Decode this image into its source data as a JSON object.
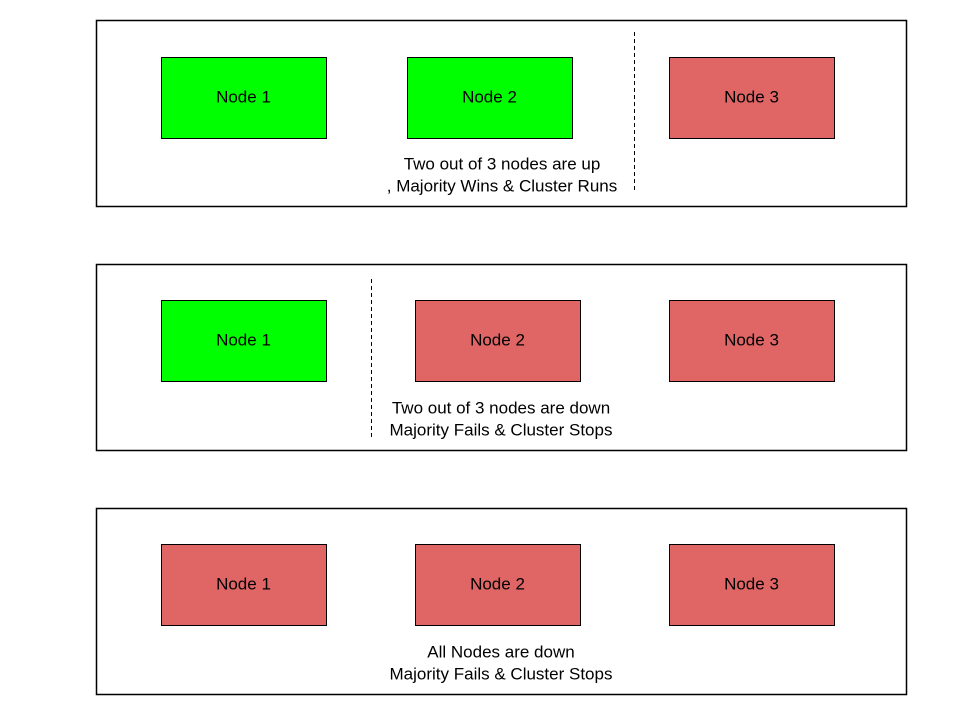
{
  "panels": [
    {
      "nodes": [
        {
          "label": "Node 1",
          "color": "#00ff00"
        },
        {
          "label": "Node 2",
          "color": "#00ff00"
        },
        {
          "label": "Node 3",
          "color": "#e06666"
        }
      ],
      "caption": [
        "Two out of 3 nodes are up",
        ", Majority Wins & Cluster Runs"
      ]
    },
    {
      "nodes": [
        {
          "label": "Node 1",
          "color": "#00ff00"
        },
        {
          "label": "Node 2",
          "color": "#e06666"
        },
        {
          "label": "Node 3",
          "color": "#e06666"
        }
      ],
      "caption": [
        "Two out of 3 nodes are down",
        "Majority Fails & Cluster Stops"
      ]
    },
    {
      "nodes": [
        {
          "label": "Node 1",
          "color": "#e06666"
        },
        {
          "label": "Node 2",
          "color": "#e06666"
        },
        {
          "label": "Node 3",
          "color": "#e06666"
        }
      ],
      "caption": [
        "All Nodes are down",
        "Majority Fails & Cluster Stops"
      ]
    }
  ]
}
